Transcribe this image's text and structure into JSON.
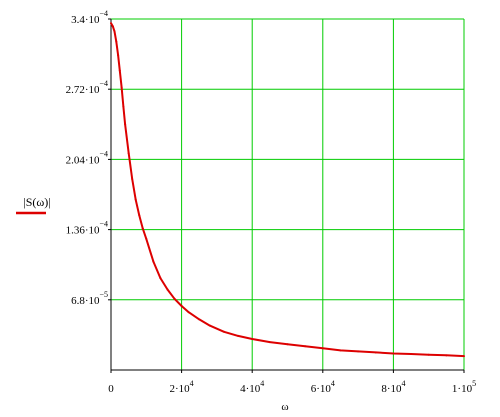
{
  "chart_data": {
    "type": "line",
    "title": "",
    "xlabel": "ω",
    "ylabel": "|S(ω)|",
    "xlim": [
      0,
      100000
    ],
    "ylim": [
      0,
      0.00034
    ],
    "grid": true,
    "grid_color": "#00cc00",
    "x_ticks": [
      {
        "value": 0,
        "mant": "0",
        "exp": ""
      },
      {
        "value": 20000,
        "mant": "2·10",
        "exp": "4"
      },
      {
        "value": 40000,
        "mant": "4·10",
        "exp": "4"
      },
      {
        "value": 60000,
        "mant": "6·10",
        "exp": "4"
      },
      {
        "value": 80000,
        "mant": "8·10",
        "exp": "4"
      },
      {
        "value": 100000,
        "mant": "1·10",
        "exp": "5"
      }
    ],
    "y_ticks": [
      {
        "value": 6.8e-05,
        "mant": "6.8·10",
        "exp": "−5"
      },
      {
        "value": 0.000136,
        "mant": "1.36·10",
        "exp": "−4"
      },
      {
        "value": 0.000204,
        "mant": "2.04·10",
        "exp": "−4"
      },
      {
        "value": 0.000272,
        "mant": "2.72·10",
        "exp": "−4"
      },
      {
        "value": 0.00034,
        "mant": "3.4·10",
        "exp": "−4"
      }
    ],
    "series": [
      {
        "color": "#dd0000",
        "x": [
          0,
          500,
          1000,
          1500,
          2000,
          2500,
          3000,
          3500,
          4000,
          5000,
          6000,
          7000,
          8000,
          9000,
          10000,
          12000,
          14000,
          16000,
          18000,
          20000,
          22000,
          25000,
          28000,
          32000,
          36000,
          40000,
          45000,
          50000,
          55000,
          60000,
          65000,
          70000,
          75000,
          80000,
          85000,
          90000,
          95000,
          100000
        ],
        "y": [
          0.000336,
          0.000333,
          0.000328,
          0.000318,
          0.000305,
          0.00029,
          0.000274,
          0.000255,
          0.000238,
          0.00021,
          0.000185,
          0.000165,
          0.00015,
          0.000137,
          0.000127,
          0.000105,
          8.9e-05,
          7.8e-05,
          6.9e-05,
          6.2e-05,
          5.6e-05,
          4.9e-05,
          4.3e-05,
          3.7e-05,
          3.3e-05,
          3e-05,
          2.7e-05,
          2.5e-05,
          2.3e-05,
          2.1e-05,
          1.9e-05,
          1.8e-05,
          1.7e-05,
          1.6e-05,
          1.55e-05,
          1.48e-05,
          1.42e-05,
          1.35e-05
        ]
      }
    ]
  }
}
